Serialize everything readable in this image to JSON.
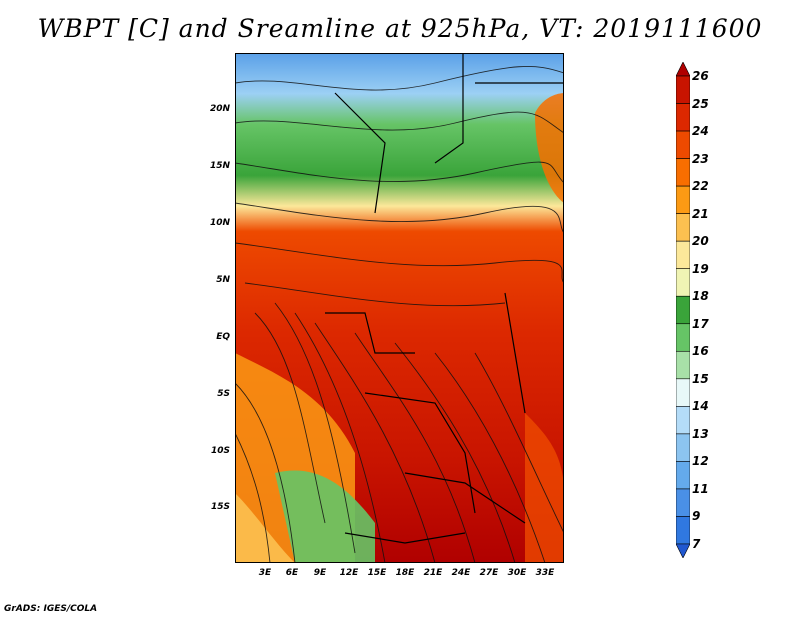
{
  "title": "WBPT [C] and Sreamline at 925hPa, VT: 2019111600",
  "credit": "GrADS: IGES/COLA",
  "lat_ticks": [
    "20N",
    "15N",
    "10N",
    "5N",
    "EQ",
    "5S",
    "10S",
    "15S"
  ],
  "lon_ticks": [
    "3E",
    "6E",
    "9E",
    "12E",
    "15E",
    "18E",
    "21E",
    "24E",
    "27E",
    "30E",
    "33E"
  ],
  "colorbar": {
    "levels": [
      "26",
      "25",
      "24",
      "23",
      "22",
      "21",
      "20",
      "19",
      "18",
      "17",
      "16",
      "15",
      "14",
      "13",
      "12",
      "11",
      "9",
      "7"
    ],
    "colors": [
      "#b00000",
      "#c81400",
      "#dc2800",
      "#ee4a00",
      "#f86e00",
      "#fc9a14",
      "#fcc050",
      "#fce89a",
      "#f0f4b4",
      "#3aa43a",
      "#66c466",
      "#a8e0a8",
      "#e8f8f8",
      "#b4dcf8",
      "#8cc4f0",
      "#64aaec",
      "#4a90e6",
      "#3078e0",
      "#2058d0"
    ]
  }
}
